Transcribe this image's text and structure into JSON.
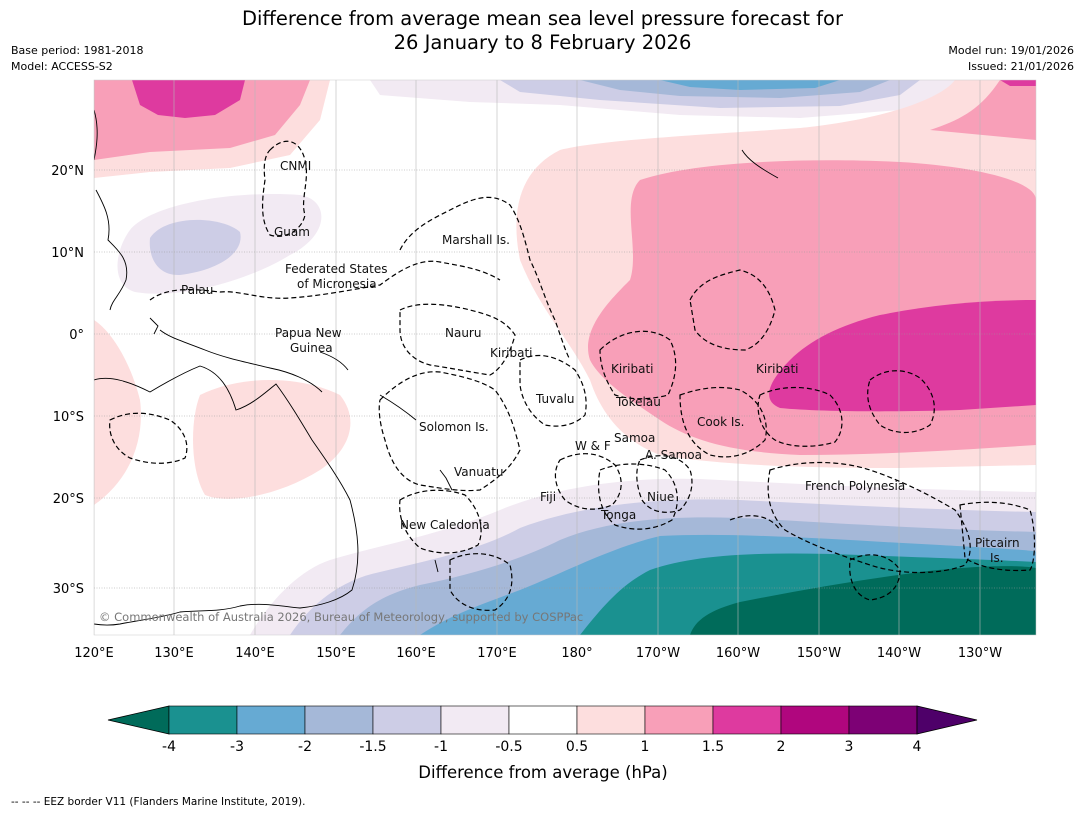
{
  "header": {
    "title_line1": "Difference from average mean sea level pressure forecast for",
    "title_line2": "26 January to 8 February 2026",
    "base_period": "Base period: 1981-2018",
    "model": "Model: ACCESS-S2",
    "model_run": "Model run: 19/01/2026",
    "issued": "Issued: 21/01/2026"
  },
  "map": {
    "copyright": "© Commonwealth of Australia 2026, Bureau of Meteorology, supported by COSPPac",
    "lat_labels": [
      "20°N",
      "10°N",
      "0°",
      "10°S",
      "20°S",
      "30°S"
    ],
    "lon_labels": [
      "120°E",
      "130°E",
      "140°E",
      "150°E",
      "160°E",
      "170°E",
      "180°",
      "170°W",
      "160°W",
      "150°W",
      "140°W",
      "130°W"
    ],
    "places": {
      "cnmi": "CNMI",
      "guam": "Guam",
      "marshall": "Marshall Is.",
      "fsm1": "Federated States",
      "fsm2": "of Micronesia",
      "palau": "Palau",
      "png1": "Papua New",
      "png2": "Guinea",
      "nauru": "Nauru",
      "kiribati_w": "Kiribati",
      "kiribati_c": "Kiribati",
      "kiribati_e": "Kiribati",
      "tuvalu": "Tuvalu",
      "tokelau": "Tokelau",
      "cook": "Cook Is.",
      "solomon": "Solomon Is.",
      "wf": "W & F",
      "samoa": "Samoa",
      "asamoa": "A. Samoa",
      "vanuatu": "Vanuatu",
      "fiji": "Fiji",
      "niue": "Niue",
      "tonga": "Tonga",
      "frpoly": "French Polynesia",
      "newcal": "New Caledonia",
      "pitcairn1": "Pitcairn",
      "pitcairn2": "Is."
    }
  },
  "colorbar": {
    "ticks": [
      "-4",
      "-3",
      "-2",
      "-1.5",
      "-1",
      "-0.5",
      "0.5",
      "1",
      "1.5",
      "2",
      "3",
      "4"
    ],
    "colors": {
      "below_min": "#006b5a",
      "bins": [
        "#1a9190",
        "#66aad3",
        "#a5b8d8",
        "#cdcde6",
        "#f2eaf3",
        "#ffffff",
        "#fddede",
        "#f89fb8",
        "#de3a9f",
        "#b0067e",
        "#7d0175"
      ],
      "above_max": "#4e0069"
    },
    "label": "Difference from average (hPa)"
  },
  "footer": {
    "eez_note": "--  --  -- EEZ border V11 (Flanders Marine Institute, 2019)."
  }
}
